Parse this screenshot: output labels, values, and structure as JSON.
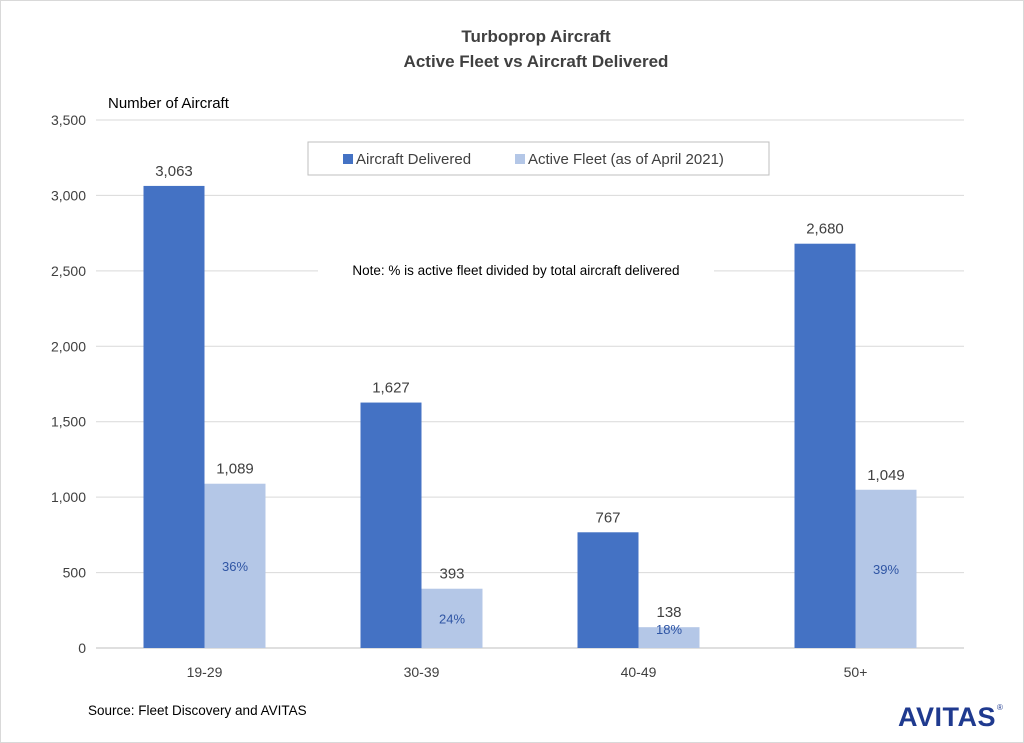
{
  "chart_data": {
    "type": "bar",
    "title": "Turboprop Aircraft",
    "subtitle": "Active Fleet vs Aircraft Delivered",
    "ylabel": "Number of Aircraft",
    "xlabel": "",
    "categories": [
      "19-29",
      "30-39",
      "40-49",
      "50+"
    ],
    "series": [
      {
        "name": "Aircraft Delivered",
        "values": [
          3063,
          1627,
          767,
          2680
        ],
        "labels": [
          "3,063",
          "1,627",
          "767",
          "2,680"
        ],
        "color": "#4472c4"
      },
      {
        "name": "Active Fleet (as of April 2021)",
        "values": [
          1089,
          393,
          138,
          1049
        ],
        "labels": [
          "1,089",
          "393",
          "138",
          "1,049"
        ],
        "color": "#b4c7e7"
      }
    ],
    "percentages": [
      "36%",
      "24%",
      "18%",
      "39%"
    ],
    "percent_color": "#2f55a4",
    "ylim": [
      0,
      3500
    ],
    "yticks": [
      0,
      500,
      1000,
      1500,
      2000,
      2500,
      3000,
      3500
    ],
    "ytick_labels": [
      "0",
      "500",
      "1,000",
      "1,500",
      "2,000",
      "2,500",
      "3,000",
      "3,500"
    ],
    "grid": true,
    "legend_position": "top-center",
    "note": "Note: % is active fleet divided by total aircraft delivered",
    "source": "Source: Fleet Discovery and AVITAS"
  },
  "logo": {
    "text": "AVITAS",
    "mark": "®"
  }
}
